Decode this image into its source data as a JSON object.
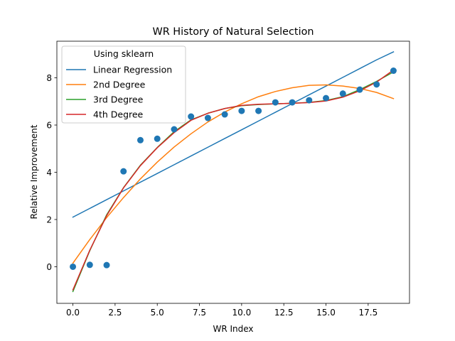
{
  "chart_data": {
    "type": "scatter",
    "title": "WR History of Natural Selection",
    "xlabel": "WR Index",
    "ylabel": "Relative Improvement",
    "xlim": [
      -0.95,
      19.95
    ],
    "ylim": [
      -1.55,
      9.55
    ],
    "xticks": [
      0,
      2.5,
      5,
      7.5,
      10,
      12.5,
      15,
      17.5
    ],
    "xtick_labels": [
      "0.0",
      "2.5",
      "5.0",
      "7.5",
      "10.0",
      "12.5",
      "15.0",
      "17.5"
    ],
    "yticks": [
      0,
      2,
      4,
      6,
      8
    ],
    "ytick_labels": [
      "0",
      "2",
      "4",
      "6",
      "8"
    ],
    "grid": false,
    "legend": {
      "title": "Using sklearn",
      "placement": "top-left",
      "entries": [
        "Linear Regression",
        "2nd Degree",
        "3rd Degree",
        "4th Degree"
      ]
    },
    "points": {
      "color": "#1f77b4",
      "x": [
        0,
        1,
        2,
        3,
        4,
        5,
        6,
        7,
        8,
        9,
        10,
        11,
        12,
        13,
        14,
        15,
        16,
        17,
        18,
        19
      ],
      "y": [
        0.0,
        0.08,
        0.07,
        4.04,
        5.36,
        5.42,
        5.82,
        6.36,
        6.3,
        6.45,
        6.6,
        6.6,
        6.96,
        6.96,
        7.05,
        7.14,
        7.33,
        7.5,
        7.72,
        8.3
      ]
    },
    "x": [
      0,
      1,
      2,
      3,
      4,
      5,
      6,
      7,
      8,
      9,
      10,
      11,
      12,
      13,
      14,
      15,
      16,
      17,
      18,
      19
    ],
    "series": [
      {
        "name": "Linear Regression",
        "color": "#1f77b4",
        "values": [
          2.1,
          2.47,
          2.84,
          3.21,
          3.58,
          3.95,
          4.32,
          4.69,
          5.06,
          5.43,
          5.8,
          6.17,
          6.54,
          6.91,
          7.28,
          7.65,
          8.02,
          8.39,
          8.76,
          9.1
        ]
      },
      {
        "name": "2nd Degree",
        "color": "#ff7f0e",
        "values": [
          0.15,
          1.15,
          2.08,
          2.93,
          3.72,
          4.43,
          5.07,
          5.63,
          6.13,
          6.55,
          6.9,
          7.2,
          7.42,
          7.58,
          7.68,
          7.7,
          7.65,
          7.55,
          7.38,
          7.12
        ]
      },
      {
        "name": "3rd Degree",
        "color": "#2ca02c",
        "values": [
          -1.05,
          0.68,
          2.2,
          3.35,
          4.3,
          5.05,
          5.72,
          6.22,
          6.5,
          6.7,
          6.82,
          6.87,
          6.9,
          6.92,
          6.96,
          7.04,
          7.2,
          7.5,
          7.85,
          8.25
        ]
      },
      {
        "name": "4th Degree",
        "color": "#d62728",
        "values": [
          -0.98,
          0.7,
          2.16,
          3.34,
          4.28,
          5.04,
          5.68,
          6.2,
          6.5,
          6.7,
          6.83,
          6.88,
          6.9,
          6.92,
          6.95,
          7.02,
          7.18,
          7.45,
          7.82,
          8.33
        ]
      }
    ]
  }
}
